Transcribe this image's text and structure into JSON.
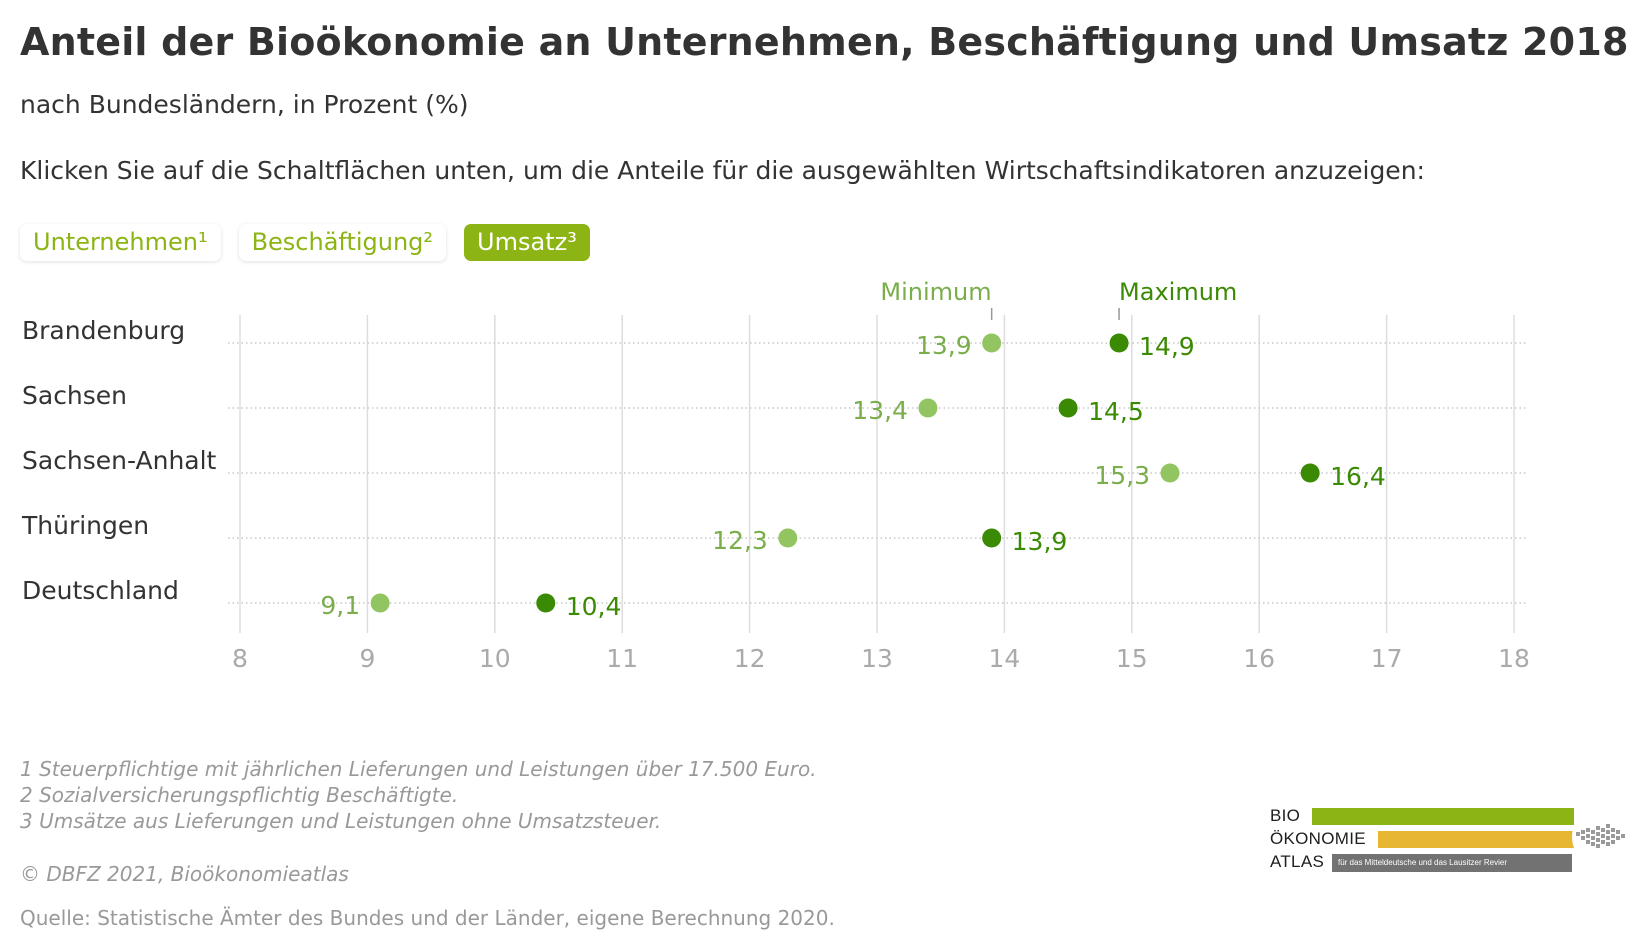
{
  "header": {
    "title": "Anteil der Bioökonomie an Unternehmen, Beschäftigung und Umsatz 2018",
    "subtitle": "nach Bundesländern, in Prozent (%)",
    "instruction": "Klicken Sie auf die Schaltflächen unten, um die Anteile für die ausgewählten Wirtschaftsindikatoren anzuzeigen:"
  },
  "buttons": [
    {
      "label": "Unternehmen¹",
      "active": false
    },
    {
      "label": "Beschäftigung²",
      "active": false
    },
    {
      "label": "Umsatz³",
      "active": true
    }
  ],
  "colors": {
    "min": "#93c462",
    "max": "#3a8a04",
    "min_label": "#79ae4b",
    "max_label": "#3a8a04",
    "accent": "#8cb414",
    "grid": "#dddddd",
    "axis_text": "#aaaaaa"
  },
  "chart_data": {
    "type": "dumbbell",
    "title": "Anteil der Bioökonomie an Unternehmen, Beschäftigung und Umsatz 2018",
    "subtitle": "nach Bundesländern, in Prozent (%)",
    "indicator": "Umsatz³",
    "categories": [
      "Brandenburg",
      "Sachsen",
      "Sachsen-Anhalt",
      "Thüringen",
      "Deutschland"
    ],
    "series": [
      {
        "name": "Minimum",
        "values": [
          13.9,
          13.4,
          15.3,
          12.3,
          9.1
        ],
        "labels": [
          "13,9",
          "13,4",
          "15,3",
          "12,3",
          "9,1"
        ]
      },
      {
        "name": "Maximum",
        "values": [
          14.9,
          14.5,
          16.4,
          13.9,
          10.4
        ],
        "labels": [
          "14,9",
          "14,5",
          "16,4",
          "13,9",
          "10,4"
        ]
      }
    ],
    "xlim": [
      8,
      18
    ],
    "xticks": [
      "8",
      "9",
      "10",
      "11",
      "12",
      "13",
      "14",
      "15",
      "16",
      "17",
      "18"
    ],
    "grid": true,
    "legend": "top"
  },
  "footnotes": [
    "1 Steuerpflichtige mit jährlichen Lieferungen und Leistungen über 17.500 Euro.",
    "2 Sozialversicherungspflichtig Beschäftigte.",
    "3 Umsätze aus Lieferungen und Leistungen ohne Umsatzsteuer."
  ],
  "copyright": "© DBFZ 2021, Bioökonomieatlas",
  "source": "Quelle: Statistische Ämter des Bundes und der Länder, eigene Berechnung 2020.",
  "logo": {
    "line1": "BIO",
    "line2": "ÖKONOMIE",
    "line3": "ATLAS",
    "tagline": "für das Mitteldeutsche und das Lausitzer Revier"
  }
}
